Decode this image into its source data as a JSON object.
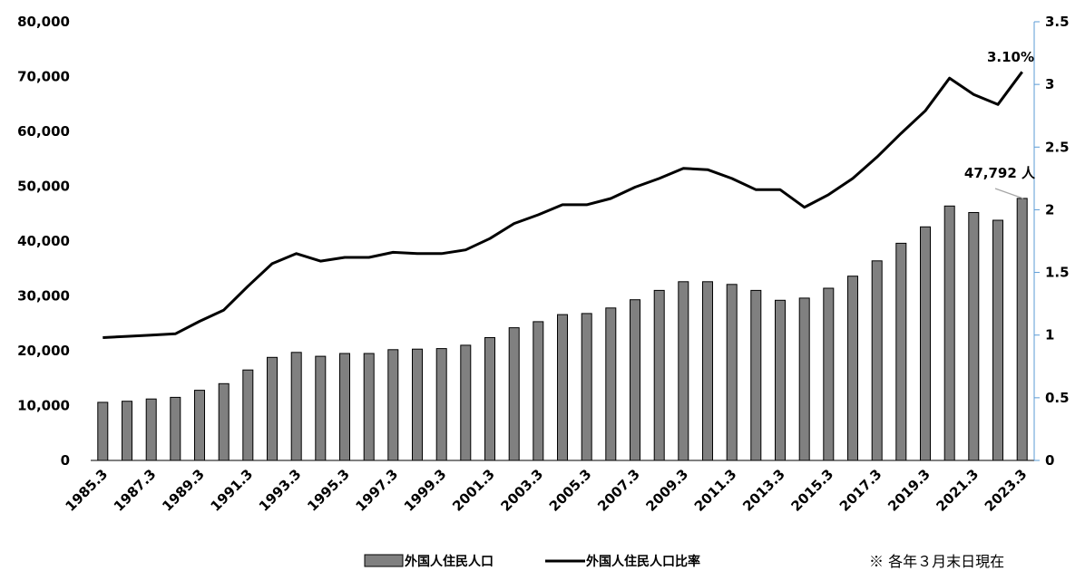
{
  "chart_data": {
    "type": "bar",
    "categories": [
      "1985.3",
      "1986.3",
      "1987.3",
      "1988.3",
      "1989.3",
      "1990.3",
      "1991.3",
      "1992.3",
      "1993.3",
      "1994.3",
      "1995.3",
      "1996.3",
      "1997.3",
      "1998.3",
      "1999.3",
      "2000.3",
      "2001.3",
      "2002.3",
      "2003.3",
      "2004.3",
      "2005.3",
      "2006.3",
      "2007.3",
      "2008.3",
      "2009.3",
      "2010.3",
      "2011.3",
      "2012.3",
      "2013.3",
      "2014.3",
      "2015.3",
      "2016.3",
      "2017.3",
      "2018.3",
      "2019.3",
      "2020.3",
      "2021.3",
      "2022.3",
      "2023.3"
    ],
    "x_tick_labels": [
      "1985.3",
      "1987.3",
      "1989.3",
      "1991.3",
      "1993.3",
      "1995.3",
      "1997.3",
      "1999.3",
      "2001.3",
      "2003.3",
      "2005.3",
      "2007.3",
      "2009.3",
      "2011.3",
      "2013.3",
      "2015.3",
      "2017.3",
      "2019.3",
      "2021.3",
      "2023.3"
    ],
    "series": [
      {
        "name": "外国人住民人口",
        "type": "bar",
        "axis": "left",
        "color": "#808080",
        "values": [
          10600,
          10800,
          11200,
          11500,
          12800,
          14000,
          16500,
          18800,
          19700,
          19000,
          19500,
          19500,
          20200,
          20300,
          20400,
          21000,
          22400,
          24200,
          25300,
          26600,
          26800,
          27800,
          29300,
          31000,
          32600,
          32600,
          32100,
          31000,
          29200,
          29600,
          31400,
          33600,
          36400,
          39600,
          42600,
          46400,
          45200,
          43800,
          47792
        ]
      },
      {
        "name": "外国人住民人口比率",
        "type": "line",
        "axis": "right",
        "color": "#000000",
        "values": [
          0.98,
          0.99,
          1.0,
          1.01,
          1.11,
          1.2,
          1.39,
          1.57,
          1.65,
          1.59,
          1.62,
          1.62,
          1.66,
          1.65,
          1.65,
          1.68,
          1.77,
          1.89,
          1.96,
          2.04,
          2.04,
          2.09,
          2.18,
          2.25,
          2.33,
          2.32,
          2.25,
          2.16,
          2.16,
          2.02,
          2.12,
          2.25,
          2.42,
          2.61,
          2.79,
          3.05,
          2.92,
          2.84,
          3.1
        ]
      }
    ],
    "y_left": {
      "ticks": [
        "0",
        "10,000",
        "20,000",
        "30,000",
        "40,000",
        "50,000",
        "60,000",
        "70,000",
        "80,000"
      ],
      "ylim": [
        0,
        80000
      ]
    },
    "y_right": {
      "ticks": [
        "0",
        "0.5",
        "1",
        "1.5",
        "2",
        "2.5",
        "3",
        "3.5"
      ],
      "ylim": [
        0,
        3.5
      ]
    },
    "annotations": {
      "line_last": "3.10%",
      "bar_last": "47,792 人"
    },
    "legend_placement": "bottom"
  },
  "legend": {
    "bar_label": "外国人住民人口",
    "line_label": "外国人住民人口比率"
  },
  "note": "※ 各年３月末日現在"
}
